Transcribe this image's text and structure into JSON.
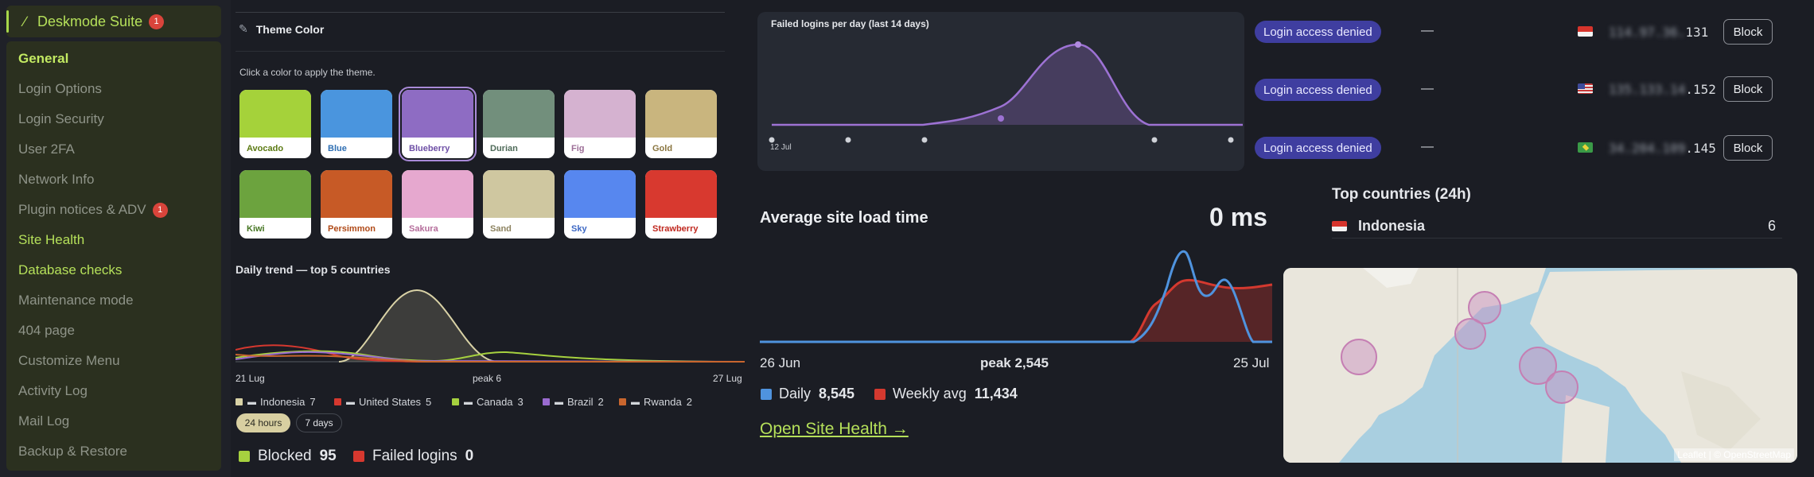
{
  "sidebar": {
    "brand": "Deskmode Suite",
    "brand_badge": "1",
    "items": [
      {
        "label": "General",
        "state": "current"
      },
      {
        "label": "Login Options"
      },
      {
        "label": "Login Security"
      },
      {
        "label": "User 2FA"
      },
      {
        "label": "Network Info"
      },
      {
        "label": "Plugin notices & ADV",
        "badge": "1"
      },
      {
        "label": "Site Health",
        "state": "highlight"
      },
      {
        "label": "Database checks",
        "state": "highlight"
      },
      {
        "label": "Maintenance mode"
      },
      {
        "label": "404 page"
      },
      {
        "label": "Customize Menu"
      },
      {
        "label": "Activity Log"
      },
      {
        "label": "Mail Log"
      },
      {
        "label": "Backup & Restore"
      }
    ]
  },
  "theme": {
    "title": "Theme Color",
    "hint": "Click a color to apply the theme.",
    "selected": "Blueberry",
    "swatches": [
      {
        "name": "Avocado",
        "color": "#a5d23a",
        "text": "#5b7a12"
      },
      {
        "name": "Blue",
        "color": "#4a95de",
        "text": "#2f6fb3"
      },
      {
        "name": "Blueberry",
        "color": "#8e6cc3",
        "text": "#6e4fa6"
      },
      {
        "name": "Durian",
        "color": "#728f7c",
        "text": "#4f6b59"
      },
      {
        "name": "Fig",
        "color": "#d5b2d0",
        "text": "#9c6d96"
      },
      {
        "name": "Gold",
        "color": "#c9b57e",
        "text": "#8a7640"
      },
      {
        "name": "Kiwi",
        "color": "#6ca33e",
        "text": "#457522"
      },
      {
        "name": "Persimmon",
        "color": "#c75a26",
        "text": "#b04a18"
      },
      {
        "name": "Sakura",
        "color": "#e6a8cf",
        "text": "#b56d9b"
      },
      {
        "name": "Sand",
        "color": "#cfc7a0",
        "text": "#8d8360"
      },
      {
        "name": "Sky",
        "color": "#5787ef",
        "text": "#3d68c4"
      },
      {
        "name": "Strawberry",
        "color": "#d8392f",
        "text": "#c0281f"
      }
    ]
  },
  "trend": {
    "title": "Daily trend — top 5 countries",
    "x_start": "21 Lug",
    "x_mid": "peak 6",
    "x_end": "27 Lug",
    "legend": [
      {
        "name": "Indonesia",
        "value": "7",
        "color": "#d9d2a6",
        "flag": "id"
      },
      {
        "name": "United States",
        "value": "5",
        "color": "#d6382f",
        "flag": "us"
      },
      {
        "name": "Canada",
        "value": "3",
        "color": "#a6d13f",
        "flag": "ca"
      },
      {
        "name": "Brazil",
        "value": "2",
        "color": "#9a6bd0",
        "flag": "br"
      },
      {
        "name": "Rwanda",
        "value": "2",
        "color": "#c9662e",
        "flag": "rw"
      }
    ],
    "range_options": [
      "24 hours",
      "7 days"
    ],
    "range_selected": "24 hours",
    "stats": {
      "blocked_label": "Blocked",
      "blocked": "95",
      "failed_label": "Failed logins",
      "failed": "0"
    }
  },
  "failed_logins": {
    "title": "Failed logins per day (last 14 days)",
    "x_label": "12 Jul"
  },
  "access_rows": [
    {
      "status": "Login access denied",
      "user": "—",
      "flag": "id",
      "ip_hidden": "114.97.36.",
      "ip_visible": "131",
      "action": "Block"
    },
    {
      "status": "Login access denied",
      "user": "—",
      "flag": "us",
      "ip_hidden": "135.133.14",
      "ip_visible": ".152",
      "action": "Block"
    },
    {
      "status": "Login access denied",
      "user": "—",
      "flag": "br",
      "ip_hidden": "34.204.109",
      "ip_visible": ".145",
      "action": "Block"
    }
  ],
  "site_load": {
    "title": "Average site load time",
    "value": "0 ms",
    "x_start": "26 Jun",
    "x_mid": "peak 2,545",
    "x_end": "25 Jul",
    "daily_label": "Daily",
    "daily_value": "8,545",
    "weekly_label": "Weekly avg",
    "weekly_value": "11,434",
    "colors": {
      "daily": "#4f93de",
      "weekly": "#d4392f"
    },
    "link": "Open Site Health →"
  },
  "countries": {
    "title": "Top countries (24h)",
    "rows": [
      {
        "name": "Indonesia",
        "count": "6",
        "flag": "id"
      }
    ]
  },
  "map": {
    "attribution": "Leaflet | © OpenStreetMap"
  }
}
